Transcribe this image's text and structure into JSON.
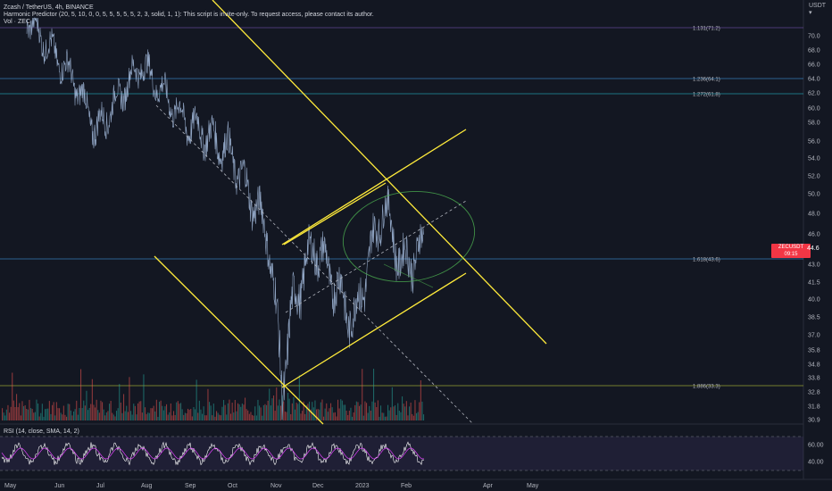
{
  "header": {
    "symbol_line": "Zcash / TetherUS, 4h, BINANCE",
    "indicator_line": "Harmonic Predictor (20, 5, 10, 0, 0, 5, 5, 5, 5, 5, 2, 3, solid, 1, 1): This script is invite-only. To request access, please contact its author.",
    "volume_line": "Vol · ZEC"
  },
  "currency_label": "USDT",
  "current_price": {
    "symbol": "ZECUSDT",
    "price": "44.6",
    "countdown": "09:15"
  },
  "colors": {
    "background": "#131722",
    "price_line": "#a6bddf",
    "trendline": "#ffeb3b",
    "volume_up": "#26a69a",
    "volume_down": "#ef5350",
    "rsi_line": "#ffffff",
    "rsi_ma": "#e040fb",
    "price_tag": "#f23645"
  },
  "chart_data": [
    {
      "type": "line",
      "name": "ZEC/USDT 4h price",
      "y_ticks": [
        "70.0",
        "68.0",
        "66.0",
        "64.0",
        "62.0",
        "60.0",
        "58.0",
        "56.0",
        "54.0",
        "52.0",
        "50.0",
        "48.0",
        "46.0",
        "43.0",
        "41.5",
        "40.0",
        "38.5",
        "37.0",
        "35.8",
        "34.8",
        "33.8",
        "32.8",
        "31.8",
        "30.9"
      ],
      "x_ticks": [
        "May",
        "Jun",
        "Jul",
        "Aug",
        "Sep",
        "Oct",
        "Nov",
        "Dec",
        "2023",
        "Feb",
        "Apr",
        "May"
      ],
      "price_levels": [
        {
          "label": "1.131(71.2)",
          "color": "#7e57c2"
        },
        {
          "label": "1.236(64.1)",
          "color": "#42a5f5"
        },
        {
          "label": "1.272(61.8)",
          "color": "#26c6da"
        },
        {
          "label": "1.618(43.6)",
          "color": "#42a5f5"
        },
        {
          "label": "1.886(33.3)",
          "color": "#cddc39"
        }
      ],
      "x_range": [
        "May 2022",
        "May 2023"
      ],
      "price_path": [
        [
          "May 2022",
          72.5
        ],
        [
          "Jun 2022",
          64
        ],
        [
          "Jul 2022",
          57
        ],
        [
          "Aug 2022",
          66
        ],
        [
          "Sep 2022",
          58.5
        ],
        [
          "Oct 2022",
          55
        ],
        [
          "Nov 2022",
          46
        ],
        [
          "Nov 10 2022",
          33.3
        ],
        [
          "Nov 20 2022",
          40
        ],
        [
          "Dec 2022",
          45
        ],
        [
          "Jan 2023",
          38
        ],
        [
          "Jan 20 2023",
          49
        ],
        [
          "Feb 2023",
          43
        ],
        [
          "Feb 15 2023",
          44.6
        ]
      ]
    },
    {
      "type": "line",
      "name": "RSI",
      "title": "RSI (14, close, SMA, 14, 2)",
      "y_ticks": [
        "60.00",
        "40.00"
      ],
      "bands": [
        70,
        30
      ]
    }
  ]
}
